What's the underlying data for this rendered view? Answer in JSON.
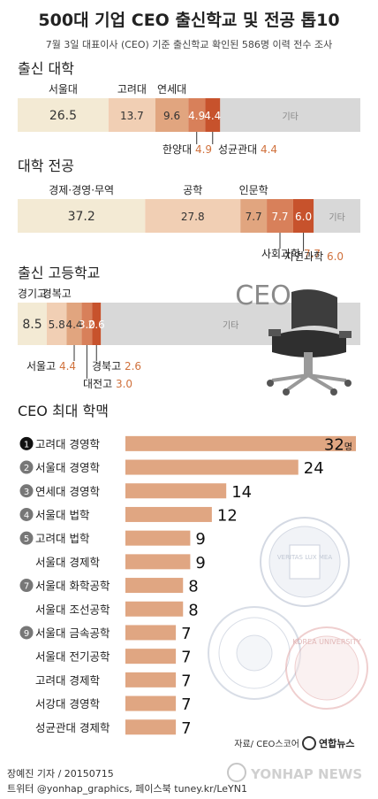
{
  "header": {
    "title": "500대 기업 CEO 출신학교 및 전공 톱10",
    "subtitle": "7월 3일 대표이사 (CEO) 기준 출신학교 확인된 586명 이력 전수 조사"
  },
  "chart_data": [
    {
      "type": "bar",
      "title": "출신 대학",
      "stacked": true,
      "unit": "%",
      "segments": [
        {
          "label": "서울대",
          "value": 26.5
        },
        {
          "label": "고려대",
          "value": 13.7
        },
        {
          "label": "연세대",
          "value": 9.6
        },
        {
          "label": "한양대",
          "value": 4.9
        },
        {
          "label": "성균관대",
          "value": 4.4
        },
        {
          "label": "기타",
          "value": null
        }
      ],
      "colors": [
        "#f3ead4",
        "#f1cfb4",
        "#e1a57f",
        "#d8805a",
        "#c7522c",
        "#d8d8d8"
      ]
    },
    {
      "type": "bar",
      "title": "대학 전공",
      "stacked": true,
      "unit": "%",
      "segments": [
        {
          "label": "경제·경영·무역",
          "value": 37.2
        },
        {
          "label": "공학",
          "value": 27.8
        },
        {
          "label": "인문학",
          "value": 7.7
        },
        {
          "label": "사회과학",
          "value": 7.7
        },
        {
          "label": "자연과학",
          "value": 6.0
        },
        {
          "label": "기타",
          "value": null
        }
      ],
      "colors": [
        "#f3ead4",
        "#f1cfb4",
        "#e1a57f",
        "#d8805a",
        "#c7522c",
        "#d8d8d8"
      ]
    },
    {
      "type": "bar",
      "title": "출신 고등학교",
      "stacked": true,
      "unit": "%",
      "segments": [
        {
          "label": "경기고",
          "value": 8.5
        },
        {
          "label": "경복고",
          "value": 5.8
        },
        {
          "label": "서울고",
          "value": 4.4
        },
        {
          "label": "대전고",
          "value": 3.0
        },
        {
          "label": "경북고",
          "value": 2.6
        },
        {
          "label": "기타",
          "value": null
        }
      ],
      "colors": [
        "#f3ead4",
        "#f1cfb4",
        "#e1a57f",
        "#d8805a",
        "#c7522c",
        "#d8d8d8"
      ]
    },
    {
      "type": "bar",
      "orientation": "horizontal",
      "title": "CEO 최대 학맥",
      "unit": "명",
      "xlim": [
        0,
        32
      ],
      "categories": [
        "고려대 경영학",
        "서울대 경영학",
        "연세대 경영학",
        "서울대 법학",
        "고려대 법학",
        "서울대 경제학",
        "서울대 화학공학",
        "서울대 조선공학",
        "서울대 금속공학",
        "서울대 전기공학",
        "고려대 경제학",
        "서강대 경영학",
        "성균관대 경제학"
      ],
      "values": [
        32,
        24,
        14,
        12,
        9,
        9,
        8,
        8,
        7,
        7,
        7,
        7,
        7
      ],
      "ranks": [
        "1",
        "2",
        "3",
        "4",
        "5",
        "",
        "7",
        "",
        "9",
        "",
        "",
        "",
        ""
      ],
      "bar_color": "#e0a682"
    }
  ],
  "illustration_label": "CEO",
  "seal_texts": [
    "VERITAS LUX MEA",
    "KOREA UNIVERSITY"
  ],
  "source": "자료/ CEO스코어",
  "credit_line1": "장예진 기자 / 20150715",
  "credit_line2": "트위터 @yonhap_graphics, 페이스북 tuney.kr/LeYN1",
  "logo_ko": "연합뉴스",
  "logo_en": "YONHAP NEWS"
}
